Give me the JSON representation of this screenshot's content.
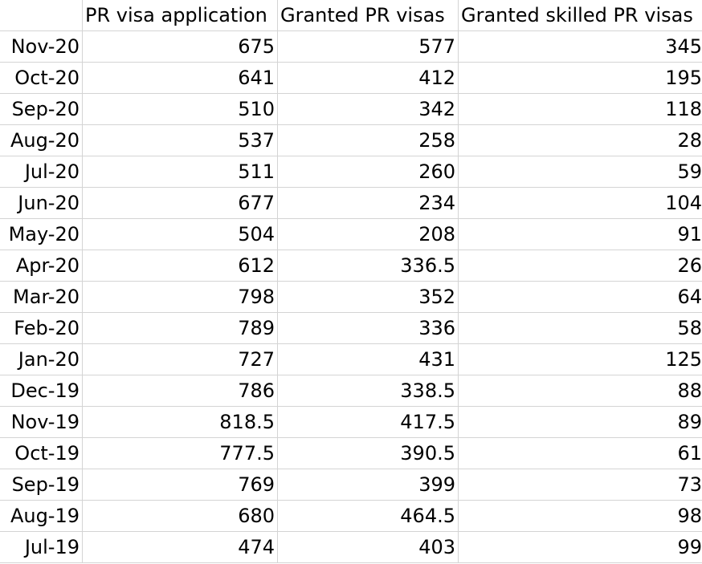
{
  "table": {
    "columns": [
      "",
      "PR visa application",
      "Granted PR visas",
      "Granted skilled PR visas"
    ],
    "rows": [
      {
        "month": "Nov-20",
        "applications": "675",
        "granted": "577",
        "skilled": "345"
      },
      {
        "month": "Oct-20",
        "applications": "641",
        "granted": "412",
        "skilled": "195"
      },
      {
        "month": "Sep-20",
        "applications": "510",
        "granted": "342",
        "skilled": "118"
      },
      {
        "month": "Aug-20",
        "applications": "537",
        "granted": "258",
        "skilled": "28"
      },
      {
        "month": "Jul-20",
        "applications": "511",
        "granted": "260",
        "skilled": "59"
      },
      {
        "month": "Jun-20",
        "applications": "677",
        "granted": "234",
        "skilled": "104"
      },
      {
        "month": "May-20",
        "applications": "504",
        "granted": "208",
        "skilled": "91"
      },
      {
        "month": "Apr-20",
        "applications": "612",
        "granted": "336.5",
        "skilled": "26"
      },
      {
        "month": "Mar-20",
        "applications": "798",
        "granted": "352",
        "skilled": "64"
      },
      {
        "month": "Feb-20",
        "applications": "789",
        "granted": "336",
        "skilled": "58"
      },
      {
        "month": "Jan-20",
        "applications": "727",
        "granted": "431",
        "skilled": "125"
      },
      {
        "month": "Dec-19",
        "applications": "786",
        "granted": "338.5",
        "skilled": "88"
      },
      {
        "month": "Nov-19",
        "applications": "818.5",
        "granted": "417.5",
        "skilled": "89"
      },
      {
        "month": "Oct-19",
        "applications": "777.5",
        "granted": "390.5",
        "skilled": "61"
      },
      {
        "month": "Sep-19",
        "applications": "769",
        "granted": "399",
        "skilled": "73"
      },
      {
        "month": "Aug-19",
        "applications": "680",
        "granted": "464.5",
        "skilled": "98"
      },
      {
        "month": "Jul-19",
        "applications": "474",
        "granted": "403",
        "skilled": "99"
      }
    ]
  }
}
